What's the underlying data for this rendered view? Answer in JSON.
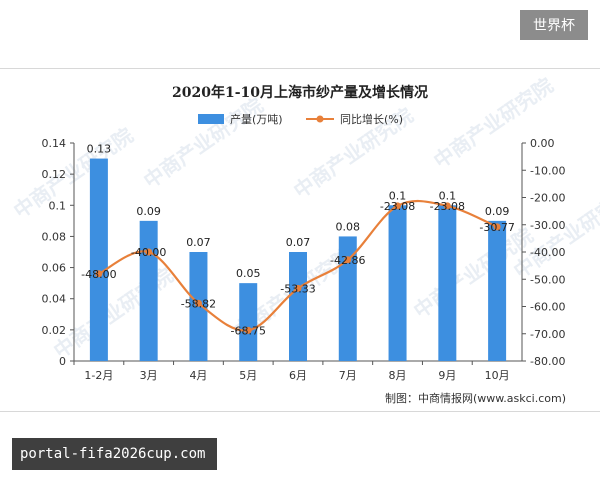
{
  "brand_badge": "世界杯",
  "site_banner": "portal-fifa2026cup.com",
  "watermark": "中商产业研究院",
  "chart_data": {
    "type": "bar+line",
    "title": "2020年1-10月上海市纱产量及增长情况",
    "categories": [
      "1-2月",
      "3月",
      "4月",
      "5月",
      "6月",
      "7月",
      "8月",
      "9月",
      "10月"
    ],
    "series": [
      {
        "name": "产量(万吨)",
        "kind": "bar",
        "axis": "left",
        "color": "#3d8fe0",
        "values": [
          0.13,
          0.09,
          0.07,
          0.05,
          0.07,
          0.08,
          0.1,
          0.1,
          0.09
        ],
        "labels": [
          "0.13",
          "0.09",
          "0.07",
          "0.05",
          "0.07",
          "0.08",
          "0.1",
          "0.1",
          "0.09"
        ]
      },
      {
        "name": "同比增长(%)",
        "kind": "line",
        "axis": "right",
        "color": "#e8803a",
        "values": [
          -48.0,
          -40.0,
          -58.82,
          -68.75,
          -53.33,
          -42.86,
          -23.08,
          -23.08,
          -30.77
        ],
        "labels": [
          "-48.00",
          "-40.00",
          "-58.82",
          "-68.75",
          "-53.33",
          "-42.86",
          "-23.08",
          "-23.08",
          "-30.77"
        ]
      }
    ],
    "y_left": {
      "min": 0,
      "max": 0.14,
      "ticks": [
        0,
        0.02,
        0.04,
        0.06,
        0.08,
        0.1,
        0.12,
        0.14
      ],
      "tick_labels": [
        "0",
        "0.02",
        "0.04",
        "0.06",
        "0.08",
        "0.1",
        "0.12",
        "0.14"
      ]
    },
    "y_right": {
      "min": -80,
      "max": 0,
      "ticks": [
        0,
        -10,
        -20,
        -30,
        -40,
        -50,
        -60,
        -70,
        -80
      ],
      "tick_labels": [
        "0.00",
        "-10.00",
        "-20.00",
        "-30.00",
        "-40.00",
        "-50.00",
        "-60.00",
        "-70.00",
        "-80.00"
      ]
    },
    "legend_position": "top-center",
    "grid": false,
    "source": "制图：中商情报网(www.askci.com)"
  }
}
